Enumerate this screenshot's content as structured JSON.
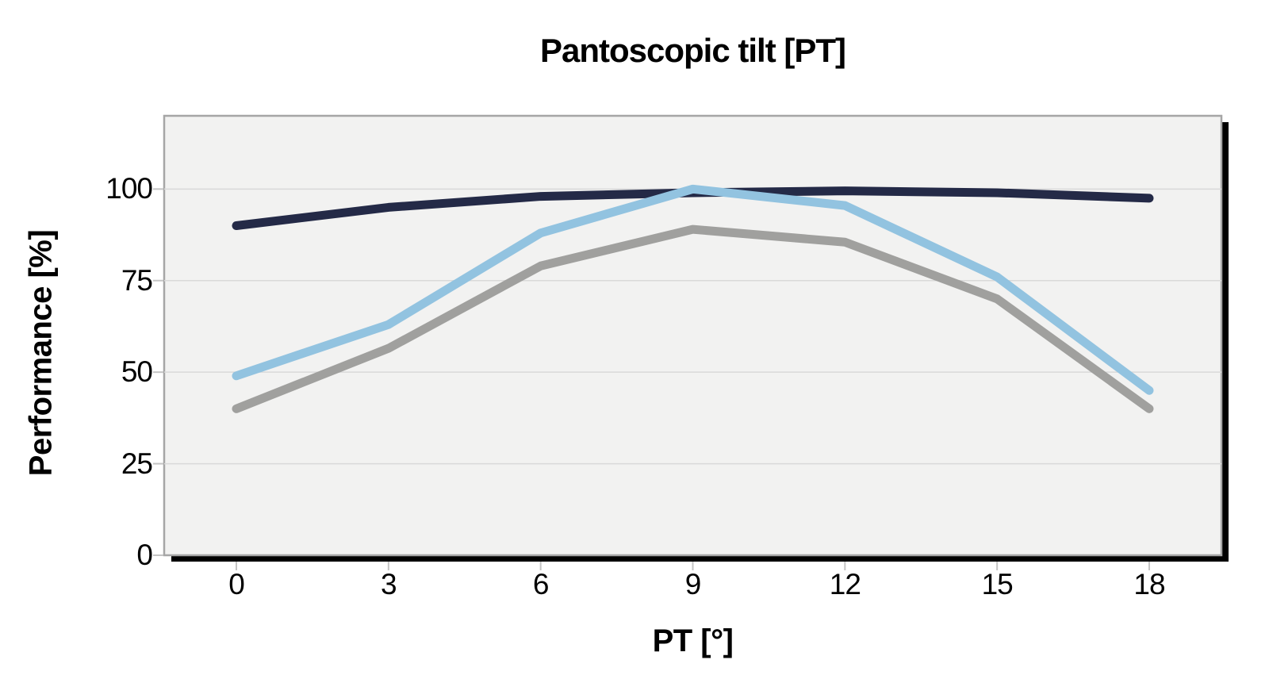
{
  "chart_data": {
    "type": "line",
    "title": "Pantoscopic tilt [PT]",
    "xlabel": "PT [°]",
    "ylabel": "Performance [%]",
    "x": [
      0,
      3,
      6,
      9,
      12,
      15,
      18
    ],
    "xticks": [
      "0",
      "3",
      "6",
      "9",
      "12",
      "15",
      "18"
    ],
    "yticks": [
      0,
      25,
      50,
      75,
      100
    ],
    "ytick_labels": [
      "0",
      "25",
      "50",
      "75",
      "100"
    ],
    "ylim": [
      0,
      120
    ],
    "grid": "horizontal",
    "legend": "none",
    "plot_bg": "#f2f2f1",
    "border_color": "#a6a6a6",
    "gridline_color": "#d9d9d9",
    "tick_color": "#c4c4c4",
    "shadow_color": "#000000",
    "text_color": "#000000",
    "series": [
      {
        "name": "dark-navy",
        "color": "#242a47",
        "values": [
          90,
          95,
          98,
          99,
          99.5,
          99,
          97.5
        ]
      },
      {
        "name": "gray",
        "color": "#a0a09e",
        "values": [
          40,
          56.5,
          79,
          89,
          85.5,
          70,
          40
        ]
      },
      {
        "name": "light-blue",
        "color": "#92c3e0",
        "values": [
          49,
          63,
          88,
          100,
          95.5,
          76,
          45
        ]
      }
    ]
  }
}
